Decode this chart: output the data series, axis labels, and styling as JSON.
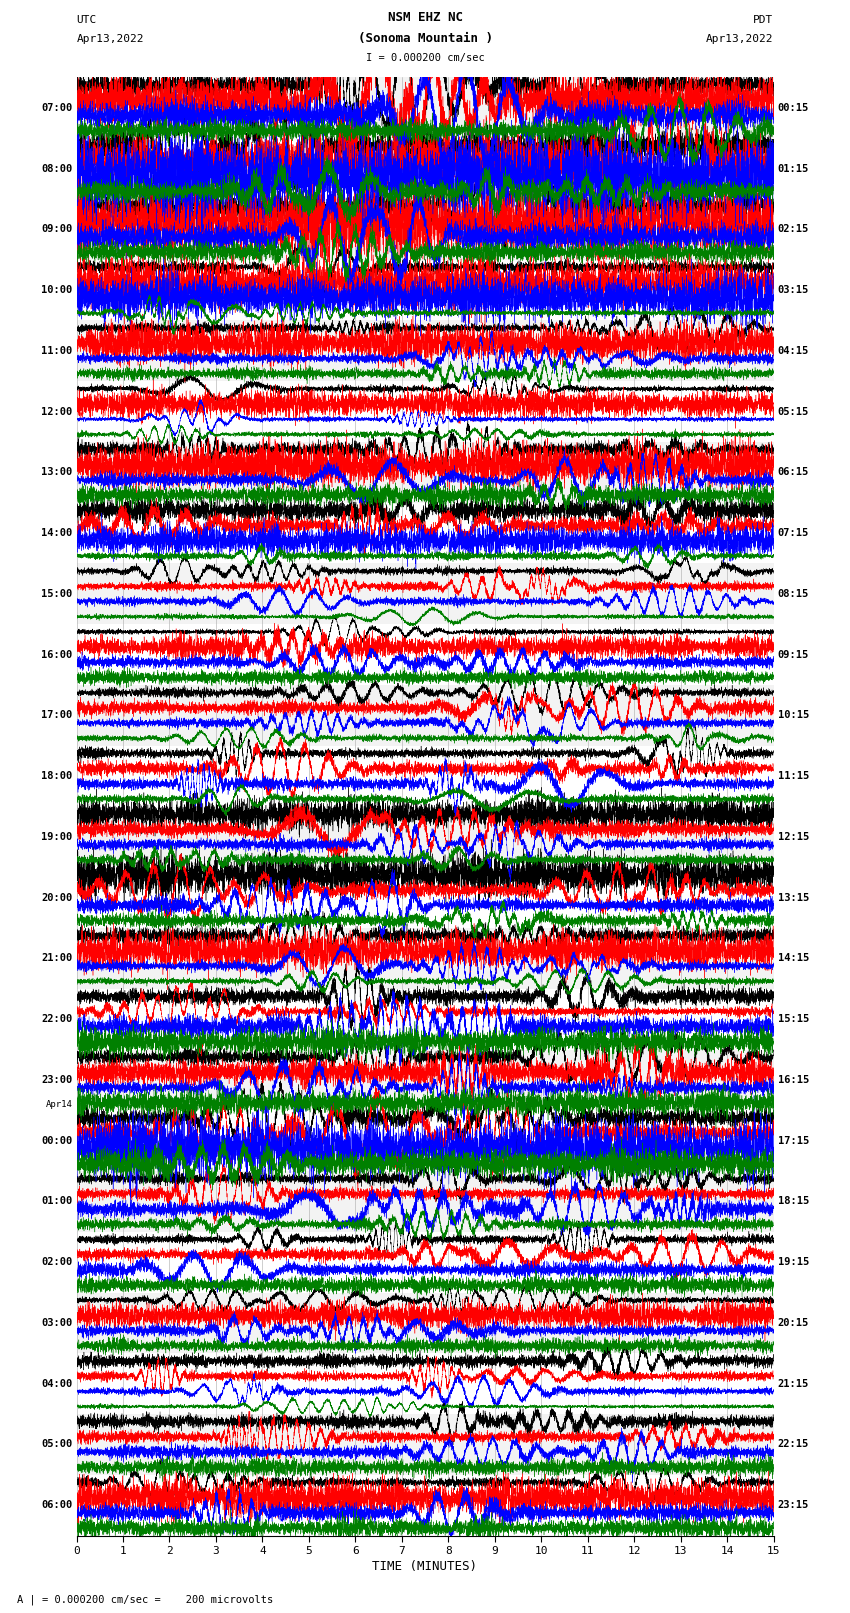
{
  "title_line1": "NSM EHZ NC",
  "title_line2": "(Sonoma Mountain )",
  "title_line3": "I = 0.000200 cm/sec",
  "label_utc": "UTC",
  "label_pdt": "PDT",
  "label_date_left": "Apr13,2022",
  "label_date_right": "Apr13,2022",
  "label_date_change": "Apr14",
  "xlabel": "TIME (MINUTES)",
  "footer": "A | = 0.000200 cm/sec =    200 microvolts",
  "xlabel_ticks": [
    0,
    1,
    2,
    3,
    4,
    5,
    6,
    7,
    8,
    9,
    10,
    11,
    12,
    13,
    14,
    15
  ],
  "left_times": [
    "07:00",
    "08:00",
    "09:00",
    "10:00",
    "11:00",
    "12:00",
    "13:00",
    "14:00",
    "15:00",
    "16:00",
    "17:00",
    "18:00",
    "19:00",
    "20:00",
    "21:00",
    "22:00",
    "23:00",
    "00:00",
    "01:00",
    "02:00",
    "03:00",
    "04:00",
    "05:00",
    "06:00"
  ],
  "right_times": [
    "00:15",
    "01:15",
    "02:15",
    "03:15",
    "04:15",
    "05:15",
    "06:15",
    "07:15",
    "08:15",
    "09:15",
    "10:15",
    "11:15",
    "12:15",
    "13:15",
    "14:15",
    "15:15",
    "16:15",
    "17:15",
    "18:15",
    "19:15",
    "20:15",
    "21:15",
    "22:15",
    "23:15"
  ],
  "date_change_row": 17,
  "n_rows": 24,
  "traces_per_row": 4,
  "colors": [
    "black",
    "red",
    "blue",
    "green"
  ],
  "bg_color": "white",
  "band_color": "#e8e8e8",
  "fig_width": 8.5,
  "fig_height": 16.13,
  "n_points": 9000,
  "row_amplitude_scales": [
    1.8,
    1.6,
    1.4,
    0.9,
    0.7,
    0.5,
    0.8,
    0.6,
    0.5,
    0.5,
    0.7,
    0.8,
    0.7,
    0.9,
    0.7,
    1.0,
    0.9,
    1.2,
    0.8,
    0.6,
    0.5,
    0.5,
    0.6,
    0.7
  ],
  "trace_amplitude_scales": [
    1.0,
    1.2,
    1.1,
    0.6
  ]
}
